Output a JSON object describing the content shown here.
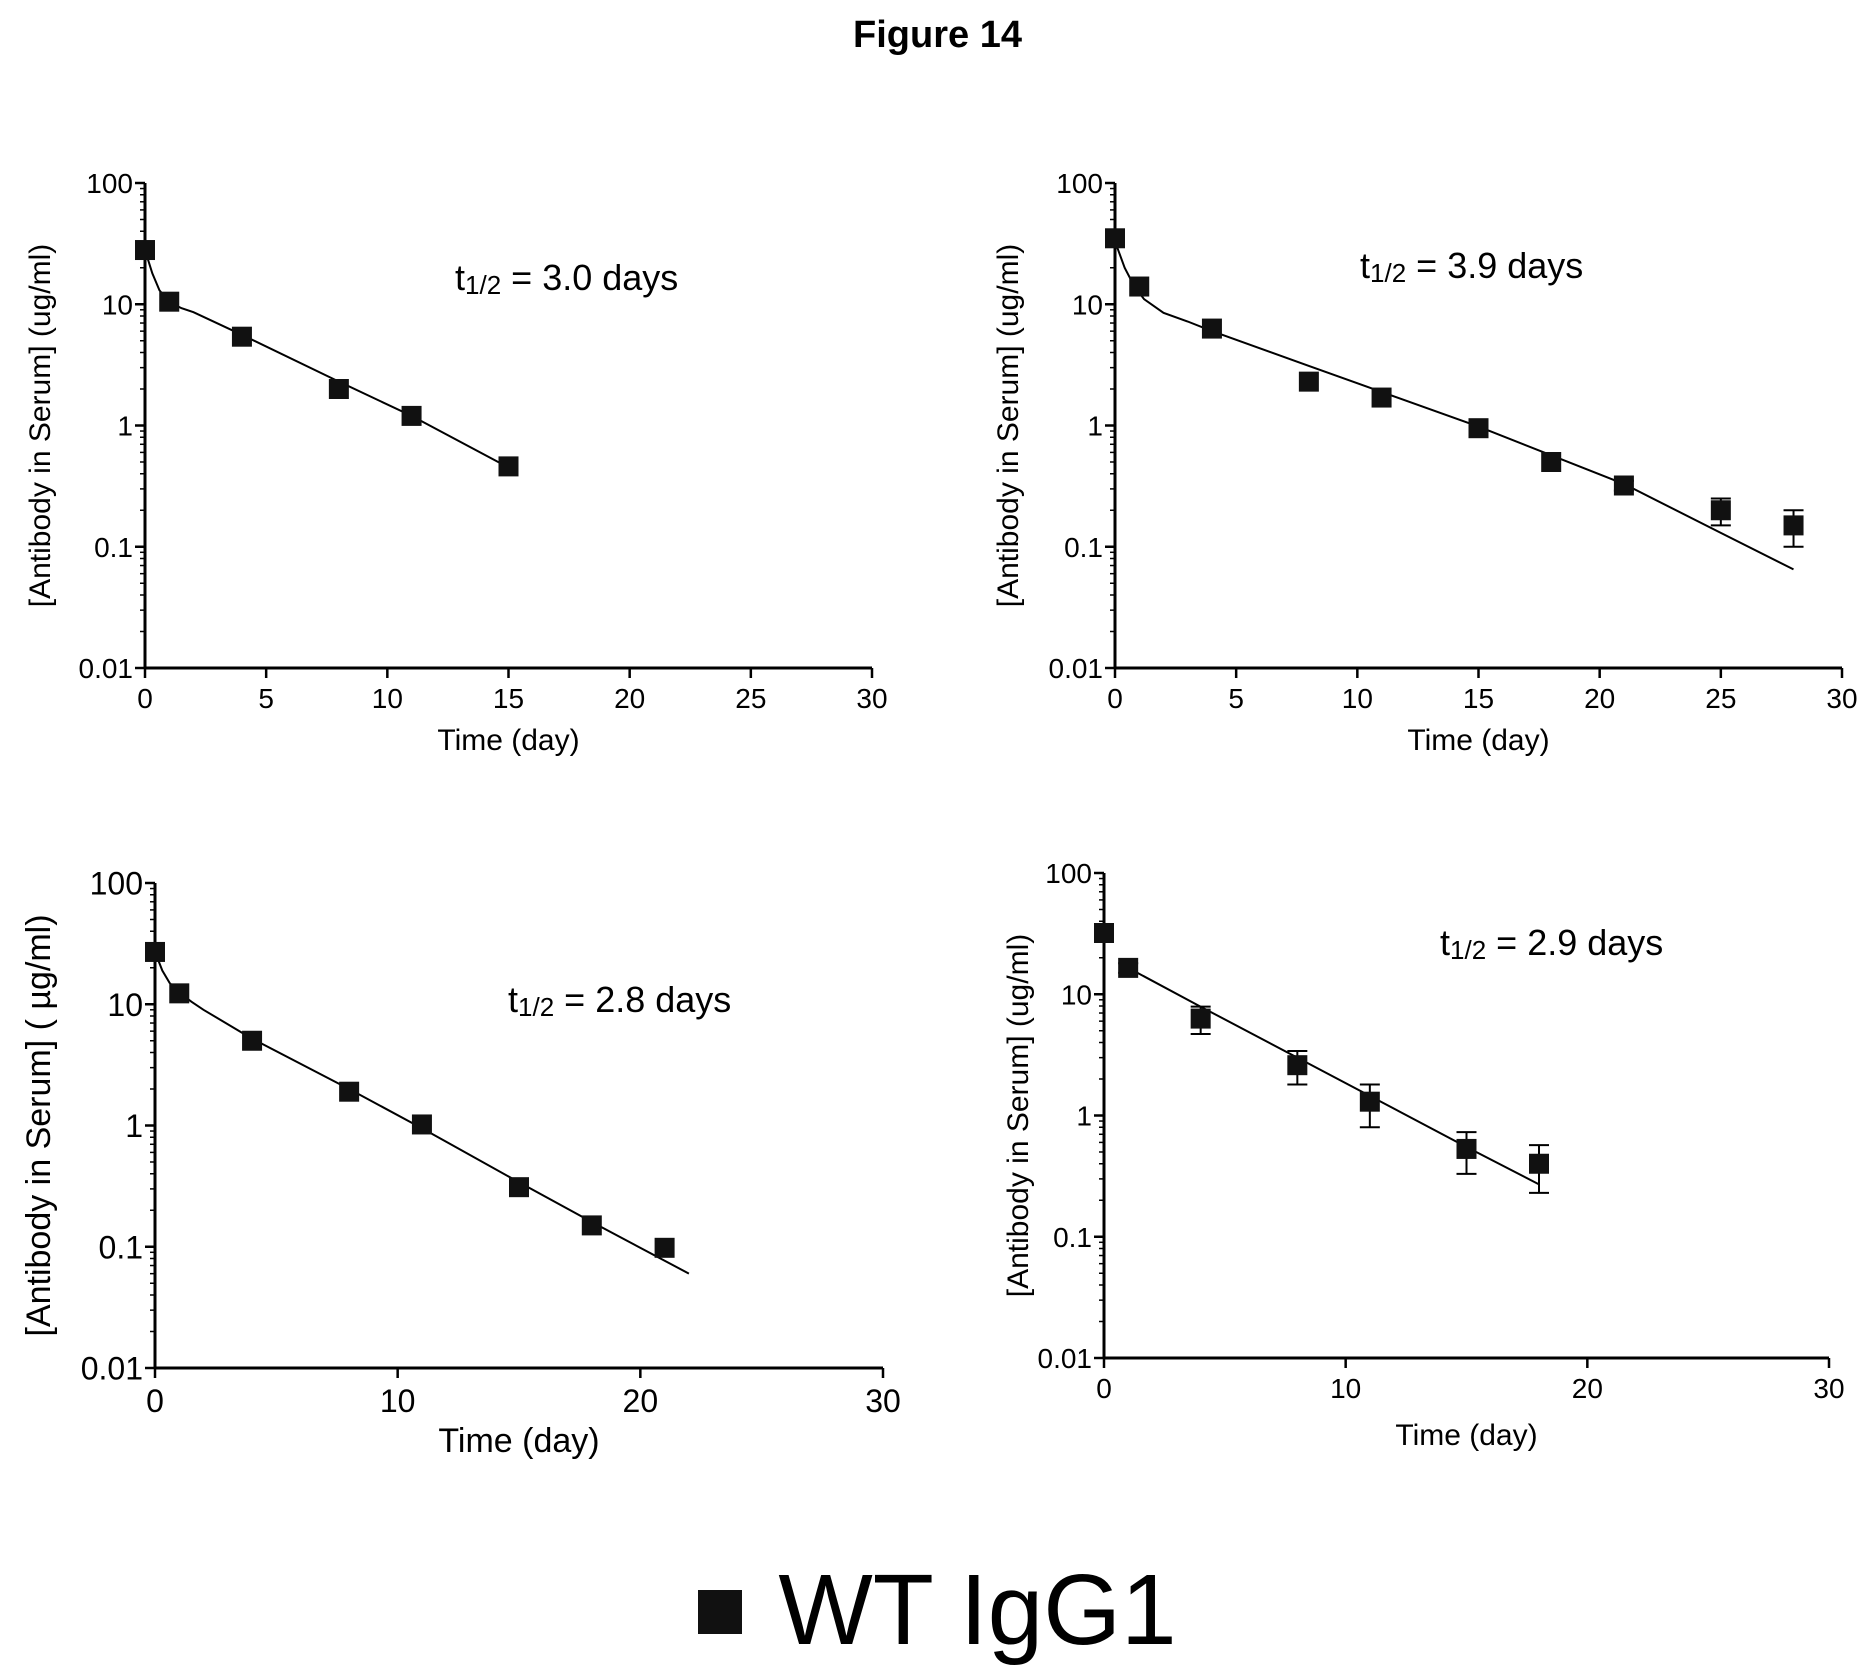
{
  "figure_title": "Figure 14",
  "legend": {
    "label": "WT IgG1",
    "marker": "filled-square",
    "color": "#111111"
  },
  "chart_data": [
    {
      "type": "scatter",
      "panel": "top-left",
      "title": "",
      "xlabel": "Time (day)",
      "ylabel": "[Antibody in Serum] (ug/ml)",
      "annotation": {
        "prefix": "t",
        "subscript": "1/2",
        "suffix": " = 3.0 days"
      },
      "xlim": [
        0,
        30
      ],
      "ylim": [
        0.01,
        100
      ],
      "yscale": "log",
      "xticks": [
        0,
        5,
        10,
        15,
        20,
        25,
        30
      ],
      "yticks": [
        0.01,
        0.1,
        1,
        10,
        100
      ],
      "ytick_labels": [
        "0.01",
        "0.1",
        "1",
        "10",
        "100"
      ],
      "series": [
        {
          "x": [
            0,
            1,
            4,
            8,
            11,
            15
          ],
          "y": [
            28,
            10.5,
            5.4,
            2.0,
            1.2,
            0.46
          ],
          "yerr": [
            0,
            0,
            0,
            0,
            0,
            0
          ]
        }
      ],
      "fit": {
        "x": [
          0,
          0.3,
          0.6,
          1,
          1.5,
          2,
          4,
          8,
          11,
          15
        ],
        "y": [
          28,
          18,
          13,
          10.5,
          9.3,
          8.6,
          5.6,
          2.3,
          1.2,
          0.45
        ]
      }
    },
    {
      "type": "scatter",
      "panel": "top-right",
      "title": "",
      "xlabel": "Time (day)",
      "ylabel": "[Antibody in Serum] (ug/ml)",
      "annotation": {
        "prefix": "t",
        "subscript": "1/2",
        "suffix": " = 3.9 days"
      },
      "xlim": [
        0,
        30
      ],
      "ylim": [
        0.01,
        100
      ],
      "yscale": "log",
      "xticks": [
        0,
        5,
        10,
        15,
        20,
        25,
        30
      ],
      "yticks": [
        0.01,
        0.1,
        1,
        10,
        100
      ],
      "ytick_labels": [
        "0.01",
        "0.1",
        "1",
        "10",
        "100"
      ],
      "series": [
        {
          "x": [
            0,
            1,
            4,
            8,
            11,
            15,
            18,
            21,
            25,
            28
          ],
          "y": [
            35,
            14,
            6.3,
            2.3,
            1.7,
            0.95,
            0.5,
            0.32,
            0.2,
            0.15
          ],
          "yerr": [
            0,
            0,
            0,
            0,
            0,
            0,
            0,
            0.03,
            0.05,
            0.05
          ]
        }
      ],
      "fit": {
        "x": [
          0,
          0.4,
          0.8,
          1.2,
          2,
          3,
          4,
          8,
          15,
          21,
          25,
          28
        ],
        "y": [
          33,
          20,
          14,
          11,
          8.5,
          7.2,
          6.0,
          3.1,
          0.98,
          0.33,
          0.13,
          0.065
        ]
      }
    },
    {
      "type": "scatter",
      "panel": "bottom-left",
      "title": "",
      "xlabel": "Time (day)",
      "ylabel": "[Antibody in Serum] ( µg/ml)",
      "annotation": {
        "prefix": "t",
        "subscript": "1/2",
        "suffix": " = 2.8 days"
      },
      "xlim": [
        0,
        30
      ],
      "ylim": [
        0.01,
        100
      ],
      "yscale": "log",
      "xticks": [
        0,
        10,
        20,
        30
      ],
      "yticks": [
        0.01,
        0.1,
        1,
        10,
        100
      ],
      "ytick_labels": [
        "0.01",
        "0.1",
        "1",
        "10",
        "100"
      ],
      "series": [
        {
          "x": [
            0,
            1,
            4,
            8,
            11,
            15,
            18,
            21
          ],
          "y": [
            27,
            12.3,
            5.0,
            1.9,
            1.02,
            0.31,
            0.15,
            0.098
          ],
          "yerr": [
            0,
            0,
            0,
            0,
            0,
            0,
            0,
            0
          ]
        }
      ],
      "fit": {
        "x": [
          0,
          0.3,
          0.6,
          1,
          1.5,
          2,
          4,
          8,
          11,
          15,
          18,
          22
        ],
        "y": [
          27,
          19,
          15,
          12.5,
          10.5,
          9.0,
          5.2,
          2.0,
          0.95,
          0.34,
          0.16,
          0.06
        ]
      }
    },
    {
      "type": "scatter",
      "panel": "bottom-right",
      "title": "",
      "xlabel": "Time (day)",
      "ylabel": "[Antibody in Serum] (ug/ml)",
      "annotation": {
        "prefix": "t",
        "subscript": "1/2",
        "suffix": " = 2.9 days"
      },
      "xlim": [
        0,
        30
      ],
      "ylim": [
        0.01,
        100
      ],
      "yscale": "log",
      "xticks": [
        0,
        10,
        20,
        30
      ],
      "yticks": [
        0.01,
        0.1,
        1,
        10,
        100
      ],
      "ytick_labels": [
        "0.01",
        "0.1",
        "1",
        "10",
        "100"
      ],
      "series": [
        {
          "x": [
            0,
            1,
            4,
            8,
            11,
            15,
            18
          ],
          "y": [
            32,
            16.5,
            6.3,
            2.6,
            1.3,
            0.53,
            0.4
          ],
          "yerr": [
            0,
            1.5,
            1.6,
            0.8,
            0.5,
            0.2,
            0.17
          ]
        }
      ],
      "fit": {
        "x": [
          1,
          4,
          8,
          11,
          15,
          18
        ],
        "y": [
          16.5,
          7.9,
          3.0,
          1.45,
          0.55,
          0.27
        ]
      }
    }
  ]
}
